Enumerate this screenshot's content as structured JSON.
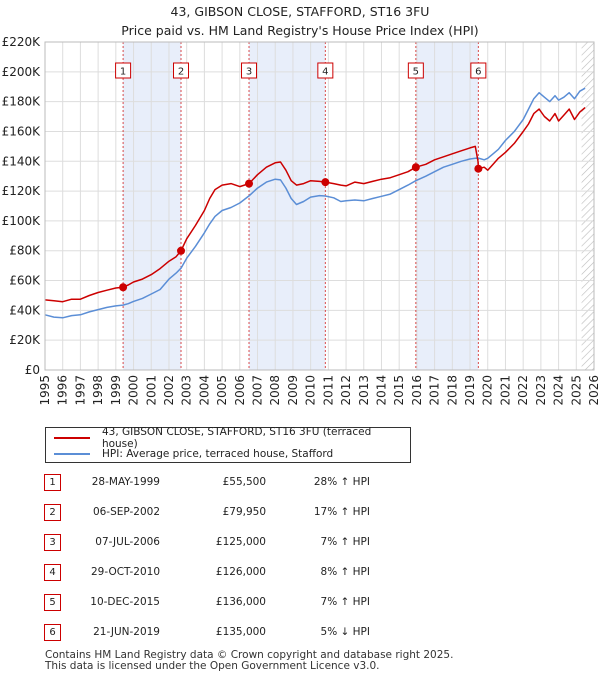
{
  "chart_data": {
    "type": "line",
    "title": "43, GIBSON CLOSE, STAFFORD, ST16 3FU",
    "subtitle": "Price paid vs. HM Land Registry's House Price Index (HPI)",
    "y_ticks": [
      "£0",
      "£20K",
      "£40K",
      "£60K",
      "£80K",
      "£100K",
      "£120K",
      "£140K",
      "£160K",
      "£180K",
      "£200K",
      "£220K"
    ],
    "x_ticks": [
      "1995",
      "1996",
      "1997",
      "1998",
      "1999",
      "2000",
      "2001",
      "2002",
      "2003",
      "2004",
      "2005",
      "2006",
      "2007",
      "2008",
      "2009",
      "2010",
      "2011",
      "2012",
      "2013",
      "2014",
      "2015",
      "2016",
      "2017",
      "2018",
      "2019",
      "2020",
      "2021",
      "2022",
      "2023",
      "2024",
      "2025",
      "2026"
    ],
    "xlim": [
      1995,
      2026
    ],
    "ylim": [
      0,
      220000
    ],
    "series": [
      {
        "name": "43, GIBSON CLOSE, STAFFORD, ST16 3FU (terraced house)",
        "color": "#cc0000",
        "points": [
          [
            1995.0,
            47000
          ],
          [
            1995.5,
            46500
          ],
          [
            1996.0,
            45800
          ],
          [
            1996.5,
            47500
          ],
          [
            1997.0,
            47500
          ],
          [
            1997.5,
            50000
          ],
          [
            1998.0,
            52000
          ],
          [
            1998.5,
            53500
          ],
          [
            1999.0,
            55000
          ],
          [
            1999.4,
            55500
          ],
          [
            1999.7,
            57000
          ],
          [
            2000.0,
            59000
          ],
          [
            2000.5,
            61000
          ],
          [
            2001.0,
            64000
          ],
          [
            2001.5,
            68000
          ],
          [
            2002.0,
            73000
          ],
          [
            2002.4,
            76000
          ],
          [
            2002.68,
            79950
          ],
          [
            2003.0,
            88000
          ],
          [
            2003.5,
            97000
          ],
          [
            2004.0,
            107000
          ],
          [
            2004.3,
            115000
          ],
          [
            2004.6,
            121000
          ],
          [
            2005.0,
            124000
          ],
          [
            2005.5,
            125000
          ],
          [
            2006.0,
            123000
          ],
          [
            2006.52,
            125000
          ],
          [
            2007.0,
            131000
          ],
          [
            2007.5,
            136000
          ],
          [
            2008.0,
            139000
          ],
          [
            2008.3,
            139500
          ],
          [
            2008.6,
            134000
          ],
          [
            2008.9,
            127000
          ],
          [
            2009.2,
            124000
          ],
          [
            2009.6,
            125000
          ],
          [
            2010.0,
            127000
          ],
          [
            2010.5,
            126500
          ],
          [
            2010.83,
            126000
          ],
          [
            2011.3,
            125000
          ],
          [
            2011.7,
            124000
          ],
          [
            2012.0,
            123500
          ],
          [
            2012.5,
            126000
          ],
          [
            2013.0,
            125000
          ],
          [
            2013.5,
            126500
          ],
          [
            2014.0,
            128000
          ],
          [
            2014.5,
            129000
          ],
          [
            2015.0,
            131000
          ],
          [
            2015.5,
            133000
          ],
          [
            2015.94,
            136000
          ],
          [
            2016.5,
            138000
          ],
          [
            2017.0,
            141000
          ],
          [
            2017.5,
            143000
          ],
          [
            2018.0,
            145000
          ],
          [
            2018.5,
            147000
          ],
          [
            2019.0,
            149000
          ],
          [
            2019.3,
            150000
          ],
          [
            2019.45,
            140000
          ],
          [
            2019.47,
            135000
          ],
          [
            2019.8,
            136000
          ],
          [
            2020.0,
            134000
          ],
          [
            2020.3,
            138000
          ],
          [
            2020.6,
            142000
          ],
          [
            2021.0,
            146000
          ],
          [
            2021.5,
            152000
          ],
          [
            2022.0,
            160000
          ],
          [
            2022.3,
            165000
          ],
          [
            2022.6,
            172000
          ],
          [
            2022.9,
            175000
          ],
          [
            2023.2,
            170000
          ],
          [
            2023.5,
            167000
          ],
          [
            2023.8,
            172000
          ],
          [
            2024.0,
            167000
          ],
          [
            2024.3,
            171000
          ],
          [
            2024.6,
            175000
          ],
          [
            2024.9,
            168000
          ],
          [
            2025.2,
            173000
          ],
          [
            2025.5,
            176000
          ]
        ]
      },
      {
        "name": "HPI: Average price, terraced house, Stafford",
        "color": "#5b8ed6",
        "points": [
          [
            1995.0,
            37000
          ],
          [
            1995.5,
            35500
          ],
          [
            1996.0,
            35000
          ],
          [
            1996.5,
            36500
          ],
          [
            1997.0,
            37000
          ],
          [
            1997.5,
            39000
          ],
          [
            1998.0,
            40500
          ],
          [
            1998.5,
            42000
          ],
          [
            1999.0,
            43000
          ],
          [
            1999.4,
            43500
          ],
          [
            1999.7,
            44500
          ],
          [
            2000.0,
            46000
          ],
          [
            2000.5,
            48000
          ],
          [
            2001.0,
            51000
          ],
          [
            2001.5,
            54000
          ],
          [
            2002.0,
            61000
          ],
          [
            2002.4,
            65000
          ],
          [
            2002.68,
            68300
          ],
          [
            2003.0,
            75000
          ],
          [
            2003.5,
            83000
          ],
          [
            2004.0,
            92000
          ],
          [
            2004.3,
            98000
          ],
          [
            2004.6,
            103000
          ],
          [
            2005.0,
            107000
          ],
          [
            2005.5,
            109000
          ],
          [
            2006.0,
            112000
          ],
          [
            2006.52,
            116800
          ],
          [
            2007.0,
            122000
          ],
          [
            2007.5,
            126000
          ],
          [
            2008.0,
            128000
          ],
          [
            2008.3,
            127500
          ],
          [
            2008.6,
            122000
          ],
          [
            2008.9,
            115000
          ],
          [
            2009.2,
            111000
          ],
          [
            2009.6,
            113000
          ],
          [
            2010.0,
            116000
          ],
          [
            2010.5,
            117000
          ],
          [
            2010.83,
            116700
          ],
          [
            2011.3,
            115500
          ],
          [
            2011.7,
            113000
          ],
          [
            2012.0,
            113500
          ],
          [
            2012.5,
            114000
          ],
          [
            2013.0,
            113500
          ],
          [
            2013.5,
            115000
          ],
          [
            2014.0,
            116500
          ],
          [
            2014.5,
            118000
          ],
          [
            2015.0,
            121000
          ],
          [
            2015.5,
            124000
          ],
          [
            2015.94,
            127000
          ],
          [
            2016.5,
            130000
          ],
          [
            2017.0,
            133000
          ],
          [
            2017.5,
            136000
          ],
          [
            2018.0,
            138000
          ],
          [
            2018.5,
            140000
          ],
          [
            2019.0,
            141500
          ],
          [
            2019.3,
            142000
          ],
          [
            2019.47,
            142100
          ],
          [
            2019.8,
            141000
          ],
          [
            2020.0,
            142000
          ],
          [
            2020.3,
            145000
          ],
          [
            2020.6,
            148000
          ],
          [
            2021.0,
            154000
          ],
          [
            2021.5,
            160000
          ],
          [
            2022.0,
            168000
          ],
          [
            2022.3,
            175000
          ],
          [
            2022.6,
            182000
          ],
          [
            2022.9,
            186000
          ],
          [
            2023.2,
            183000
          ],
          [
            2023.5,
            180000
          ],
          [
            2023.8,
            184000
          ],
          [
            2024.0,
            181000
          ],
          [
            2024.3,
            183000
          ],
          [
            2024.6,
            186000
          ],
          [
            2024.9,
            182000
          ],
          [
            2025.2,
            187000
          ],
          [
            2025.5,
            189000
          ]
        ]
      }
    ],
    "sales": [
      {
        "num": "1",
        "x": 1999.41,
        "y": 55500
      },
      {
        "num": "2",
        "x": 2002.68,
        "y": 79950
      },
      {
        "num": "3",
        "x": 2006.52,
        "y": 125000
      },
      {
        "num": "4",
        "x": 2010.83,
        "y": 126000
      },
      {
        "num": "5",
        "x": 2015.94,
        "y": 136000
      },
      {
        "num": "6",
        "x": 2019.47,
        "y": 135000
      }
    ],
    "shaded_ranges": [
      [
        1999.41,
        2002.68
      ],
      [
        2006.52,
        2010.83
      ],
      [
        2015.94,
        2019.47
      ]
    ],
    "hatch_from": 2025.3,
    "colors": {
      "grid": "#dddddd",
      "shade": "#e8eefa",
      "property_line": "#cc0000",
      "hpi_line": "#5b8ed6",
      "sale_marker": "#cc0000"
    }
  },
  "legend": {
    "property_label": "43, GIBSON CLOSE, STAFFORD, ST16 3FU (terraced house)",
    "hpi_label": "HPI: Average price, terraced house, Stafford"
  },
  "sales_table": [
    {
      "num": "1",
      "date": "28-MAY-1999",
      "price": "£55,500",
      "hpi": "28% ↑ HPI"
    },
    {
      "num": "2",
      "date": "06-SEP-2002",
      "price": "£79,950",
      "hpi": "17% ↑ HPI"
    },
    {
      "num": "3",
      "date": "07-JUL-2006",
      "price": "£125,000",
      "hpi": "7% ↑ HPI"
    },
    {
      "num": "4",
      "date": "29-OCT-2010",
      "price": "£126,000",
      "hpi": "8% ↑ HPI"
    },
    {
      "num": "5",
      "date": "10-DEC-2015",
      "price": "£136,000",
      "hpi": "7% ↑ HPI"
    },
    {
      "num": "6",
      "date": "21-JUN-2019",
      "price": "£135,000",
      "hpi": "5% ↓ HPI"
    }
  ],
  "footer": {
    "line1": "Contains HM Land Registry data © Crown copyright and database right 2025.",
    "line2": "This data is licensed under the Open Government Licence v3.0."
  }
}
